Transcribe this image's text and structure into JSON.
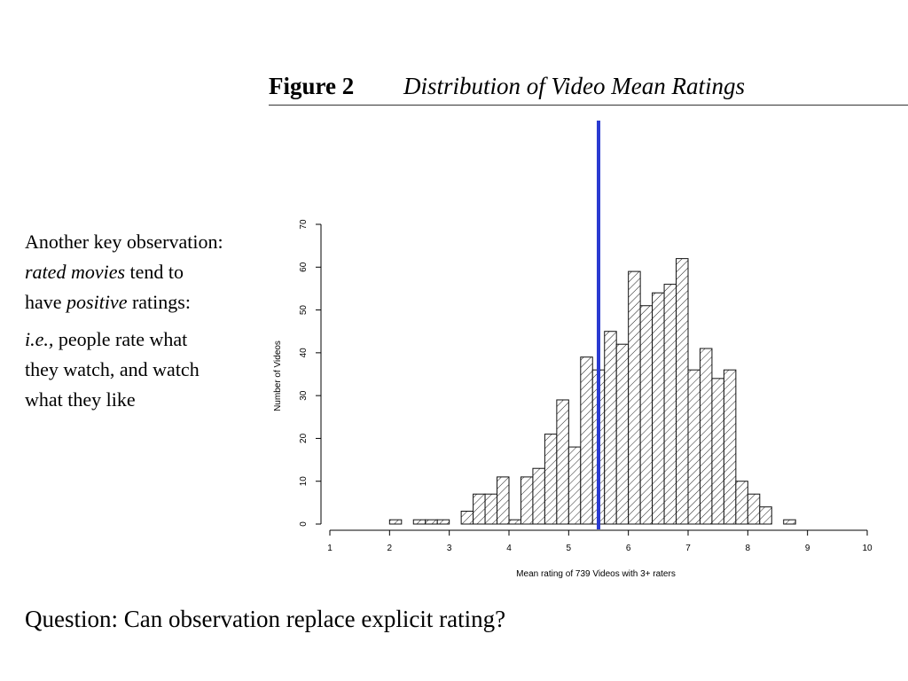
{
  "figure": {
    "label": "Figure 2",
    "title": "Distribution of Video Mean Ratings"
  },
  "side_text": {
    "p1_a": "Another key observation: ",
    "p1_b": "rated movies",
    "p1_c": " tend to have ",
    "p1_d": "positive",
    "p1_e": " ratings:",
    "p2_a": "i.e.,",
    "p2_b": " people rate what they watch, and watch what they like"
  },
  "question": "Question: Can observation replace explicit rating?",
  "chart_data": {
    "type": "bar",
    "subtype": "histogram",
    "xlabel": "Mean rating of 739 Videos with 3+ raters",
    "ylabel": "Number of Videos",
    "xlim": [
      1,
      10
    ],
    "ylim": [
      0,
      70
    ],
    "x_ticks": [
      "1",
      "2",
      "3",
      "4",
      "5",
      "6",
      "7",
      "8",
      "9",
      "10"
    ],
    "y_ticks": [
      "0",
      "10",
      "20",
      "30",
      "40",
      "50",
      "60",
      "70"
    ],
    "bin_width": 0.2,
    "bins": [
      {
        "x0": 2.0,
        "x1": 2.2,
        "count": 1
      },
      {
        "x0": 2.4,
        "x1": 2.6,
        "count": 1
      },
      {
        "x0": 2.6,
        "x1": 2.8,
        "count": 1
      },
      {
        "x0": 2.8,
        "x1": 3.0,
        "count": 1
      },
      {
        "x0": 3.2,
        "x1": 3.4,
        "count": 3
      },
      {
        "x0": 3.4,
        "x1": 3.6,
        "count": 7
      },
      {
        "x0": 3.6,
        "x1": 3.8,
        "count": 7
      },
      {
        "x0": 3.8,
        "x1": 4.0,
        "count": 11
      },
      {
        "x0": 4.0,
        "x1": 4.2,
        "count": 1
      },
      {
        "x0": 4.2,
        "x1": 4.4,
        "count": 11
      },
      {
        "x0": 4.4,
        "x1": 4.6,
        "count": 13
      },
      {
        "x0": 4.6,
        "x1": 4.8,
        "count": 21
      },
      {
        "x0": 4.8,
        "x1": 5.0,
        "count": 29
      },
      {
        "x0": 5.0,
        "x1": 5.2,
        "count": 18
      },
      {
        "x0": 5.2,
        "x1": 5.4,
        "count": 39
      },
      {
        "x0": 5.4,
        "x1": 5.6,
        "count": 36
      },
      {
        "x0": 5.6,
        "x1": 5.8,
        "count": 45
      },
      {
        "x0": 5.8,
        "x1": 6.0,
        "count": 42
      },
      {
        "x0": 6.0,
        "x1": 6.2,
        "count": 59
      },
      {
        "x0": 6.2,
        "x1": 6.4,
        "count": 51
      },
      {
        "x0": 6.4,
        "x1": 6.6,
        "count": 54
      },
      {
        "x0": 6.6,
        "x1": 6.8,
        "count": 56
      },
      {
        "x0": 6.8,
        "x1": 7.0,
        "count": 62
      },
      {
        "x0": 7.0,
        "x1": 7.2,
        "count": 36
      },
      {
        "x0": 7.2,
        "x1": 7.4,
        "count": 41
      },
      {
        "x0": 7.4,
        "x1": 7.6,
        "count": 34
      },
      {
        "x0": 7.6,
        "x1": 7.8,
        "count": 36
      },
      {
        "x0": 7.8,
        "x1": 8.0,
        "count": 10
      },
      {
        "x0": 8.0,
        "x1": 8.2,
        "count": 7
      },
      {
        "x0": 8.2,
        "x1": 8.4,
        "count": 4
      },
      {
        "x0": 8.6,
        "x1": 8.8,
        "count": 1
      }
    ],
    "reference_line": {
      "x": 5.5,
      "color": "#2a3bd1"
    },
    "bar_fill": "hatched",
    "grid": false,
    "legend": "none"
  }
}
